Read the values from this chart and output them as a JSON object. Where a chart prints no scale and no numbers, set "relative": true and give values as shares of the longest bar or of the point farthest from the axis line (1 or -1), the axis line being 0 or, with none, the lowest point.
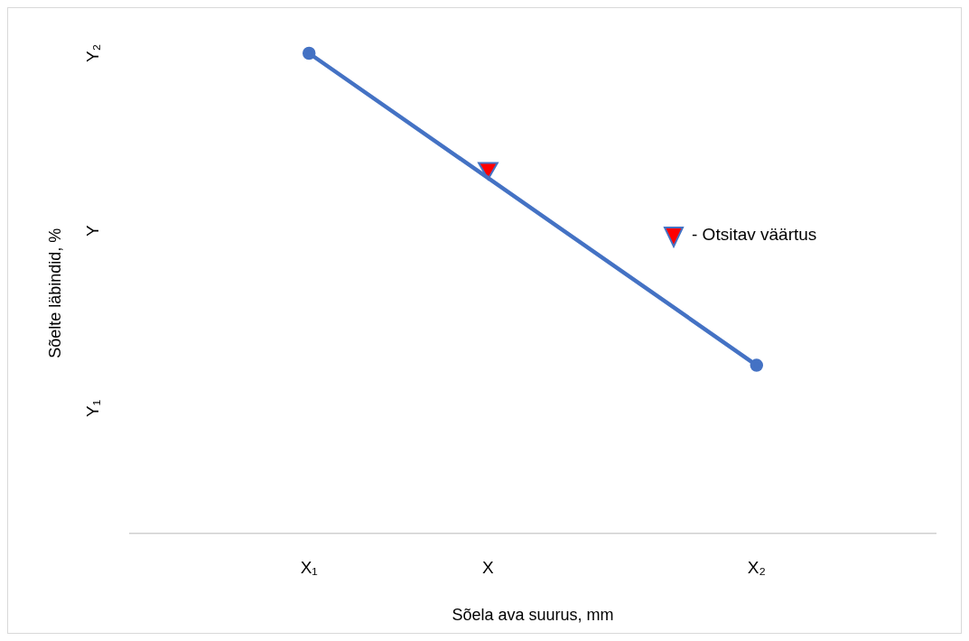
{
  "chart_data": {
    "type": "line",
    "relative": true,
    "xlabel": "Sõela ava suurus, mm",
    "ylabel": "Sõelte läbindid, %",
    "categories": [
      null,
      null,
      "X₁",
      null,
      "X",
      null,
      null,
      "X₂",
      null,
      null
    ],
    "annotations": [
      "Y₁",
      "Y",
      "Y₂"
    ],
    "grid": false,
    "legend": "right",
    "series": [
      {
        "color": "#4472c4",
        "values": [
          null,
          null,
          1,
          null,
          null,
          null,
          null,
          0.35,
          null,
          null
        ],
        "marker": "circle",
        "line_style": "solid"
      },
      {
        "type": "scatter",
        "name": "- Otsitav väärtus",
        "color": "#ff0000",
        "values": [
          null,
          null,
          null,
          null,
          0.76,
          null,
          null,
          null,
          null,
          null
        ],
        "marker": "triangle"
      }
    ]
  }
}
